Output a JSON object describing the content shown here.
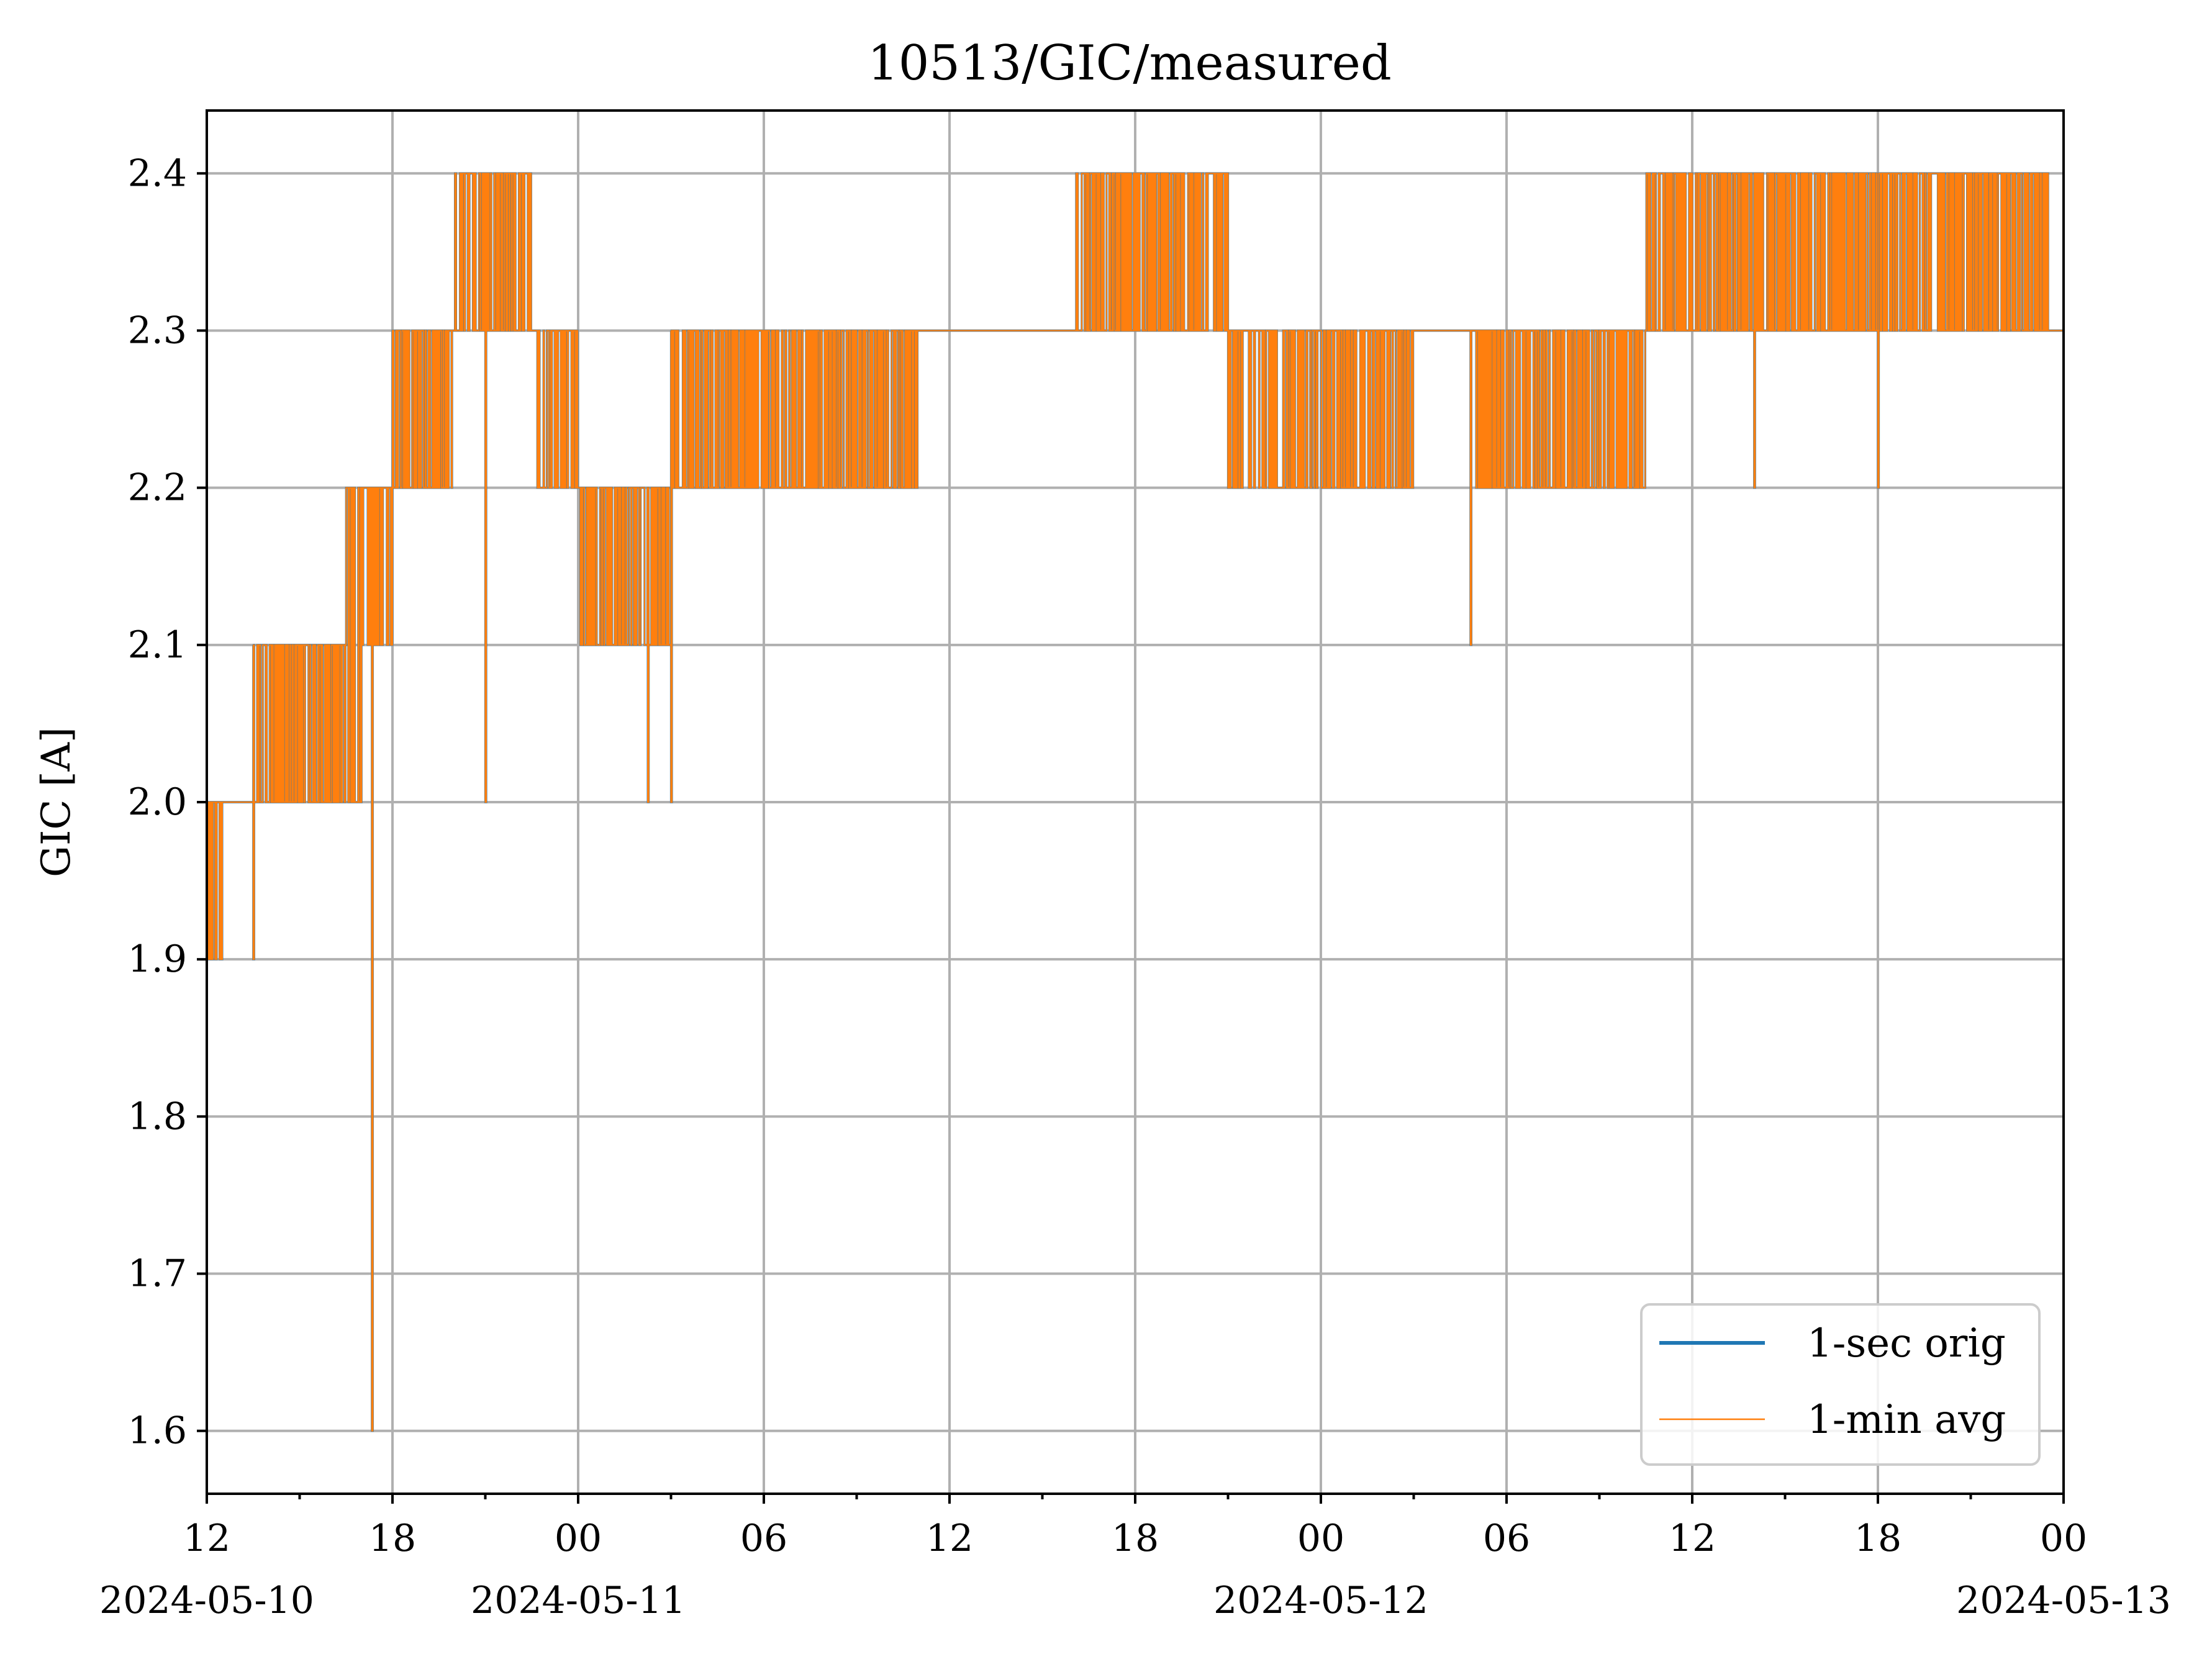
{
  "chart_data": {
    "type": "line",
    "title": "10513/GIC/measured",
    "xlabel": "",
    "ylabel": "GIC [A]",
    "xlim": [
      "2024-05-10 12:00",
      "2024-05-13 00:00"
    ],
    "ylim": [
      1.56,
      2.44
    ],
    "y_ticks": [
      "1.6",
      "1.7",
      "1.8",
      "1.9",
      "2.0",
      "2.1",
      "2.2",
      "2.3",
      "2.4"
    ],
    "x_ticks": [
      {
        "time": "2024-05-10 12:00",
        "label": "12",
        "date": "2024-05-10"
      },
      {
        "time": "2024-05-10 18:00",
        "label": "18",
        "date": ""
      },
      {
        "time": "2024-05-11 00:00",
        "label": "00",
        "date": "2024-05-11"
      },
      {
        "time": "2024-05-11 06:00",
        "label": "06",
        "date": ""
      },
      {
        "time": "2024-05-11 12:00",
        "label": "12",
        "date": ""
      },
      {
        "time": "2024-05-11 18:00",
        "label": "18",
        "date": ""
      },
      {
        "time": "2024-05-12 00:00",
        "label": "00",
        "date": "2024-05-12"
      },
      {
        "time": "2024-05-12 06:00",
        "label": "06",
        "date": ""
      },
      {
        "time": "2024-05-12 12:00",
        "label": "12",
        "date": ""
      },
      {
        "time": "2024-05-12 18:00",
        "label": "18",
        "date": ""
      },
      {
        "time": "2024-05-13 00:00",
        "label": "00",
        "date": "2024-05-13"
      }
    ],
    "grid": true,
    "legend_position": "lower-right",
    "series": [
      {
        "name": "1-sec orig",
        "color": "#1f77b4",
        "band": true,
        "segments": [
          {
            "start": "2024-05-10 12:00",
            "end": "2024-05-10 12:30",
            "low": 1.9,
            "high": 2.0
          },
          {
            "start": "2024-05-10 12:30",
            "end": "2024-05-10 13:30",
            "low": 2.0,
            "high": 2.0
          },
          {
            "start": "2024-05-10 13:30",
            "end": "2024-05-10 14:15",
            "low": 2.0,
            "high": 2.1
          },
          {
            "start": "2024-05-10 14:15",
            "end": "2024-05-10 16:30",
            "low": 2.0,
            "high": 2.1
          },
          {
            "start": "2024-05-10 16:30",
            "end": "2024-05-10 17:00",
            "low": 2.0,
            "high": 2.2
          },
          {
            "start": "2024-05-10 17:00",
            "end": "2024-05-10 18:00",
            "low": 2.1,
            "high": 2.2
          },
          {
            "start": "2024-05-10 18:00",
            "end": "2024-05-10 20:00",
            "low": 2.2,
            "high": 2.3
          },
          {
            "start": "2024-05-10 20:00",
            "end": "2024-05-10 22:30",
            "low": 2.3,
            "high": 2.4
          },
          {
            "start": "2024-05-10 22:30",
            "end": "2024-05-11 00:00",
            "low": 2.2,
            "high": 2.3
          },
          {
            "start": "2024-05-11 00:00",
            "end": "2024-05-11 03:00",
            "low": 2.1,
            "high": 2.2
          },
          {
            "start": "2024-05-11 03:00",
            "end": "2024-05-11 05:00",
            "low": 2.2,
            "high": 2.3
          },
          {
            "start": "2024-05-11 05:00",
            "end": "2024-05-11 07:00",
            "low": 2.2,
            "high": 2.3
          },
          {
            "start": "2024-05-11 07:00",
            "end": "2024-05-11 09:00",
            "low": 2.2,
            "high": 2.3
          },
          {
            "start": "2024-05-11 09:00",
            "end": "2024-05-11 11:00",
            "low": 2.2,
            "high": 2.3
          },
          {
            "start": "2024-05-11 11:00",
            "end": "2024-05-11 16:00",
            "low": 2.3,
            "high": 2.3
          },
          {
            "start": "2024-05-11 16:00",
            "end": "2024-05-11 21:00",
            "low": 2.3,
            "high": 2.4
          },
          {
            "start": "2024-05-11 21:00",
            "end": "2024-05-12 03:00",
            "low": 2.2,
            "high": 2.3
          },
          {
            "start": "2024-05-12 03:00",
            "end": "2024-05-12 05:00",
            "low": 2.3,
            "high": 2.3
          },
          {
            "start": "2024-05-12 05:00",
            "end": "2024-05-12 10:30",
            "low": 2.2,
            "high": 2.3
          },
          {
            "start": "2024-05-12 10:30",
            "end": "2024-05-12 15:00",
            "low": 2.3,
            "high": 2.4
          },
          {
            "start": "2024-05-12 15:00",
            "end": "2024-05-12 17:30",
            "low": 2.3,
            "high": 2.4
          },
          {
            "start": "2024-05-12 17:30",
            "end": "2024-05-12 23:30",
            "low": 2.3,
            "high": 2.4
          },
          {
            "start": "2024-05-12 23:30",
            "end": "2024-05-13 00:00",
            "low": 2.3,
            "high": 2.3
          }
        ],
        "spikes": [
          {
            "time": "2024-05-10 13:30",
            "value": 1.9
          },
          {
            "time": "2024-05-10 17:20",
            "value": 1.6
          },
          {
            "time": "2024-05-10 21:00",
            "value": 2.0
          },
          {
            "time": "2024-05-11 02:15",
            "value": 2.0
          },
          {
            "time": "2024-05-11 03:00",
            "value": 2.0
          },
          {
            "time": "2024-05-12 04:50",
            "value": 2.1
          },
          {
            "time": "2024-05-12 14:00",
            "value": 2.2
          },
          {
            "time": "2024-05-12 18:00",
            "value": 2.2
          }
        ]
      },
      {
        "name": "1-min avg",
        "color": "#ff7f0e",
        "band": true
      }
    ]
  }
}
